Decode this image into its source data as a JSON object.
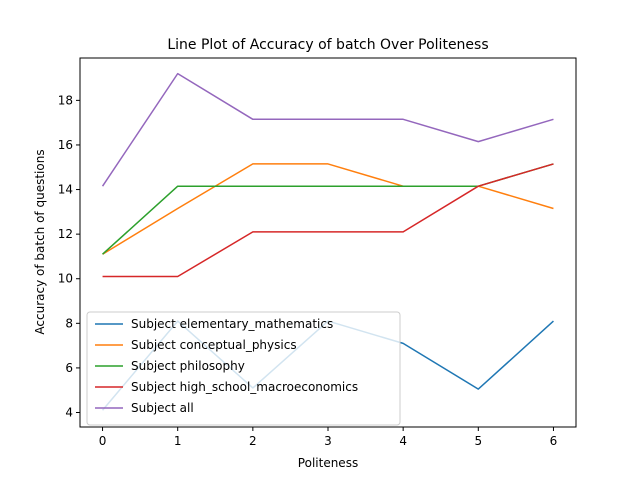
{
  "chart_data": {
    "type": "line",
    "title": "Line Plot of Accuracy of batch Over Politeness",
    "xlabel": "Politeness",
    "ylabel": "Accuracy of batch of questions",
    "x": [
      0,
      1,
      2,
      3,
      4,
      5,
      6
    ],
    "xticks": [
      0,
      1,
      2,
      3,
      4,
      5,
      6
    ],
    "yticks": [
      4,
      6,
      8,
      10,
      12,
      14,
      16,
      18
    ],
    "xlim": [
      -0.3,
      6.3
    ],
    "ylim": [
      3.35,
      19.9
    ],
    "legend_position": "lower-left",
    "series": [
      {
        "name": "Subject elementary_mathematics",
        "color": "#1f77b4",
        "values": [
          4.1,
          8.1,
          5.1,
          8.1,
          7.1,
          5.05,
          8.1
        ]
      },
      {
        "name": "Subject conceptual_physics",
        "color": "#ff7f0e",
        "values": [
          11.1,
          13.15,
          15.15,
          15.15,
          14.15,
          14.15,
          13.15
        ]
      },
      {
        "name": "Subject philosophy",
        "color": "#2ca02c",
        "values": [
          11.1,
          14.15,
          14.15,
          14.15,
          14.15,
          14.15,
          15.15
        ]
      },
      {
        "name": "Subject high_school_macroeconomics",
        "color": "#d62728",
        "values": [
          10.1,
          10.1,
          12.1,
          12.1,
          12.1,
          14.15,
          15.15
        ]
      },
      {
        "name": "Subject all",
        "color": "#9467bd",
        "values": [
          14.15,
          19.2,
          17.15,
          17.15,
          17.15,
          16.15,
          17.15
        ]
      }
    ]
  }
}
